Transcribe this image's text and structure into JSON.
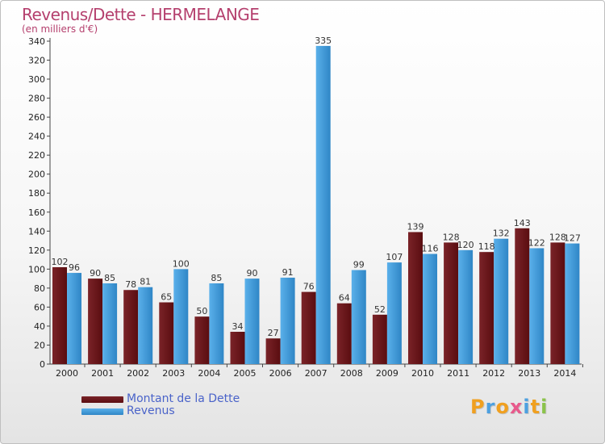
{
  "title": "Revenus/Dette - HERMELANGE",
  "subtitle": "(en milliers d'€)",
  "logo": {
    "letters": [
      "P",
      "r",
      "o",
      "x",
      "i",
      "t",
      "i"
    ],
    "colors": [
      "#f0a020",
      "#4da0e0",
      "#f0a020",
      "#e85a8c",
      "#4da0e0",
      "#f0a020",
      "#8bc34a"
    ]
  },
  "colors": {
    "dette_top": "#7a2328",
    "dette_bottom": "#5a0d10",
    "revenus_top": "#5ab0ea",
    "revenus_bottom": "#2f86c6",
    "axis_text": "#222222"
  },
  "chart_data": {
    "type": "bar",
    "title": "Revenus/Dette - HERMELANGE",
    "ylabel": "(en milliers d'€)",
    "ylim": [
      0,
      340
    ],
    "yticks": [
      0,
      20,
      40,
      60,
      80,
      100,
      120,
      140,
      160,
      180,
      200,
      220,
      240,
      260,
      280,
      300,
      320,
      340
    ],
    "grid": false,
    "legend_position": "bottom-left",
    "categories": [
      "2000",
      "2001",
      "2002",
      "2003",
      "2004",
      "2005",
      "2006",
      "2007",
      "2008",
      "2009",
      "2010",
      "2011",
      "2012",
      "2013",
      "2014"
    ],
    "series": [
      {
        "name": "Montant de la Dette",
        "values": [
          102,
          90,
          78,
          65,
          50,
          34,
          27,
          76,
          64,
          52,
          139,
          128,
          118,
          143,
          128
        ]
      },
      {
        "name": "Revenus",
        "values": [
          96,
          85,
          81,
          100,
          85,
          90,
          91,
          335,
          99,
          107,
          116,
          120,
          132,
          122,
          127
        ]
      }
    ]
  }
}
